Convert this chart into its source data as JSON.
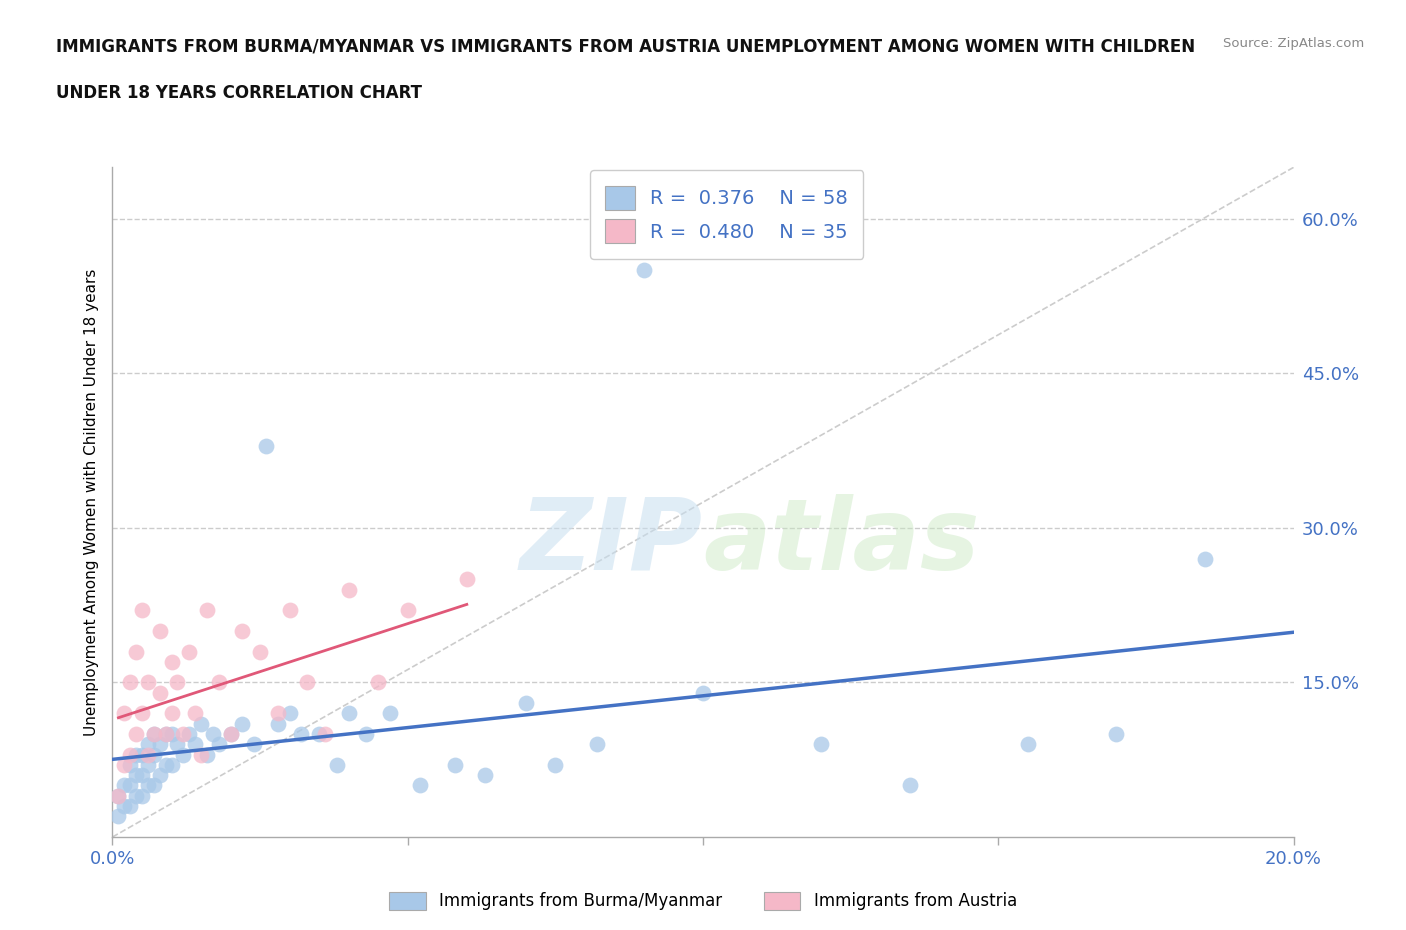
{
  "title_line1": "IMMIGRANTS FROM BURMA/MYANMAR VS IMMIGRANTS FROM AUSTRIA UNEMPLOYMENT AMONG WOMEN WITH CHILDREN",
  "title_line2": "UNDER 18 YEARS CORRELATION CHART",
  "source": "Source: ZipAtlas.com",
  "ylabel": "Unemployment Among Women with Children Under 18 years",
  "xlim": [
    0.0,
    0.2
  ],
  "ylim": [
    0.0,
    0.65
  ],
  "yticks": [
    0.0,
    0.15,
    0.3,
    0.45,
    0.6
  ],
  "ytick_labels": [
    "",
    "15.0%",
    "30.0%",
    "45.0%",
    "60.0%"
  ],
  "xticks": [
    0.0,
    0.05,
    0.1,
    0.15,
    0.2
  ],
  "xtick_labels": [
    "0.0%",
    "",
    "",
    "",
    "20.0%"
  ],
  "blue_R": 0.376,
  "blue_N": 58,
  "pink_R": 0.48,
  "pink_N": 35,
  "blue_color": "#a8c8e8",
  "pink_color": "#f5b8c8",
  "blue_line_color": "#4472c4",
  "pink_line_color": "#e05878",
  "axis_color": "#4472c4",
  "legend_label_blue": "Immigrants from Burma/Myanmar",
  "legend_label_pink": "Immigrants from Austria",
  "watermark_zip": "ZIP",
  "watermark_atlas": "atlas",
  "blue_scatter_x": [
    0.001,
    0.001,
    0.002,
    0.002,
    0.003,
    0.003,
    0.003,
    0.004,
    0.004,
    0.004,
    0.005,
    0.005,
    0.005,
    0.006,
    0.006,
    0.006,
    0.007,
    0.007,
    0.007,
    0.008,
    0.008,
    0.009,
    0.009,
    0.01,
    0.01,
    0.011,
    0.012,
    0.013,
    0.014,
    0.015,
    0.016,
    0.017,
    0.018,
    0.02,
    0.022,
    0.024,
    0.026,
    0.028,
    0.03,
    0.032,
    0.035,
    0.038,
    0.04,
    0.043,
    0.047,
    0.052,
    0.058,
    0.063,
    0.07,
    0.075,
    0.082,
    0.09,
    0.1,
    0.12,
    0.135,
    0.155,
    0.17,
    0.185
  ],
  "blue_scatter_y": [
    0.02,
    0.04,
    0.03,
    0.05,
    0.03,
    0.05,
    0.07,
    0.04,
    0.06,
    0.08,
    0.04,
    0.06,
    0.08,
    0.05,
    0.07,
    0.09,
    0.05,
    0.08,
    0.1,
    0.06,
    0.09,
    0.07,
    0.1,
    0.07,
    0.1,
    0.09,
    0.08,
    0.1,
    0.09,
    0.11,
    0.08,
    0.1,
    0.09,
    0.1,
    0.11,
    0.09,
    0.38,
    0.11,
    0.12,
    0.1,
    0.1,
    0.07,
    0.12,
    0.1,
    0.12,
    0.05,
    0.07,
    0.06,
    0.13,
    0.07,
    0.09,
    0.55,
    0.14,
    0.09,
    0.05,
    0.09,
    0.1,
    0.27
  ],
  "pink_scatter_x": [
    0.001,
    0.002,
    0.002,
    0.003,
    0.003,
    0.004,
    0.004,
    0.005,
    0.005,
    0.006,
    0.006,
    0.007,
    0.008,
    0.008,
    0.009,
    0.01,
    0.01,
    0.011,
    0.012,
    0.013,
    0.014,
    0.015,
    0.016,
    0.018,
    0.02,
    0.022,
    0.025,
    0.028,
    0.03,
    0.033,
    0.036,
    0.04,
    0.045,
    0.05,
    0.06
  ],
  "pink_scatter_y": [
    0.04,
    0.07,
    0.12,
    0.08,
    0.15,
    0.1,
    0.18,
    0.12,
    0.22,
    0.08,
    0.15,
    0.1,
    0.14,
    0.2,
    0.1,
    0.12,
    0.17,
    0.15,
    0.1,
    0.18,
    0.12,
    0.08,
    0.22,
    0.15,
    0.1,
    0.2,
    0.18,
    0.12,
    0.22,
    0.15,
    0.1,
    0.24,
    0.15,
    0.22,
    0.25
  ]
}
